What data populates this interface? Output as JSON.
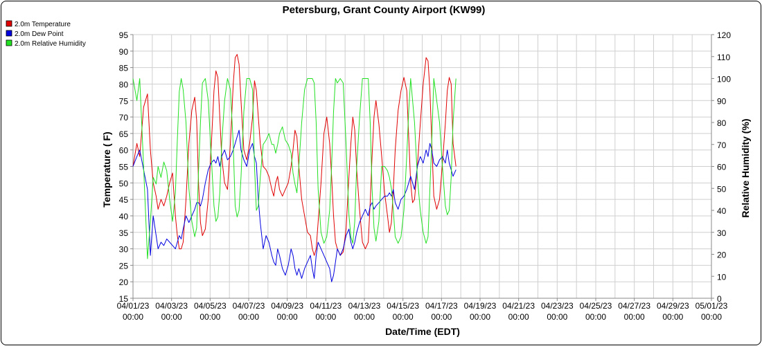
{
  "chart_data": {
    "type": "line",
    "title": "Petersburg, Grant County Airport (KW99)",
    "xlabel": "Date/Time (EDT)",
    "ylabel": "Temperature ( F)",
    "y2label": "Relative Humidity (%)",
    "x_start": "04/01/23 00:00",
    "x_end": "05/01/23 00:00",
    "ylim": [
      15,
      95
    ],
    "y2lim": [
      0,
      120
    ],
    "yticks": [
      15,
      20,
      25,
      30,
      35,
      40,
      45,
      50,
      55,
      60,
      65,
      70,
      75,
      80,
      85,
      90,
      95
    ],
    "y2ticks": [
      0,
      10,
      20,
      30,
      40,
      50,
      60,
      70,
      80,
      90,
      100,
      110,
      120
    ],
    "x_tick_labels": [
      [
        "04/01/23",
        "00:00"
      ],
      [
        "04/03/23",
        "00:00"
      ],
      [
        "04/05/23",
        "00:00"
      ],
      [
        "04/07/23",
        "00:00"
      ],
      [
        "04/09/23",
        "00:00"
      ],
      [
        "04/11/23",
        "00:00"
      ],
      [
        "04/13/23",
        "00:00"
      ],
      [
        "04/15/23",
        "00:00"
      ],
      [
        "04/17/23",
        "00:00"
      ],
      [
        "04/19/23",
        "00:00"
      ],
      [
        "04/21/23",
        "00:00"
      ],
      [
        "04/23/23",
        "00:00"
      ],
      [
        "04/25/23",
        "00:00"
      ],
      [
        "04/27/23",
        "00:00"
      ],
      [
        "04/29/23",
        "00:00"
      ],
      [
        "05/01/23",
        "00:00"
      ]
    ],
    "grid": true,
    "legend_position": "top-left",
    "series": [
      {
        "name": "2.0m Temperature",
        "color": "#e00000",
        "axis": "left",
        "x_days": [
          0,
          0.2,
          0.35,
          0.55,
          0.75,
          0.9,
          1.05,
          1.2,
          1.3,
          1.45,
          1.6,
          1.75,
          1.9,
          2.05,
          2.2,
          2.3,
          2.4,
          2.5,
          2.6,
          2.75,
          2.9,
          3.05,
          3.2,
          3.3,
          3.4,
          3.5,
          3.6,
          3.75,
          3.9,
          4.05,
          4.2,
          4.3,
          4.4,
          4.5,
          4.6,
          4.75,
          4.9,
          5.05,
          5.2,
          5.3,
          5.4,
          5.5,
          5.6,
          5.75,
          5.9,
          6.05,
          6.2,
          6.3,
          6.4,
          6.5,
          6.6,
          6.75,
          6.9,
          7.05,
          7.2,
          7.3,
          7.4,
          7.5,
          7.6,
          7.75,
          7.9,
          8.05,
          8.2,
          8.3,
          8.4,
          8.5,
          8.6,
          8.75,
          8.9,
          9.05,
          9.2,
          9.3,
          9.4,
          9.5,
          9.6,
          9.75,
          9.9,
          10.05,
          10.2,
          10.3,
          10.4,
          10.5,
          10.6,
          10.75,
          10.9,
          11.05,
          11.2,
          11.3,
          11.4,
          11.5,
          11.6,
          11.75,
          11.9,
          12.05,
          12.2,
          12.3,
          12.4,
          12.5,
          12.6,
          12.75,
          12.9,
          13.05,
          13.2,
          13.3,
          13.4,
          13.5,
          13.6,
          13.75,
          13.9,
          14.05,
          14.2,
          14.3,
          14.4,
          14.5,
          14.6,
          14.75,
          14.9,
          15.05,
          15.2,
          15.3,
          15.4,
          15.5,
          15.6,
          15.75,
          15.9,
          16.05,
          16.2,
          16.3,
          16.4,
          16.5,
          16.6,
          16.75
        ],
        "values": [
          55,
          62,
          58,
          73,
          77,
          60,
          50,
          46,
          42,
          45,
          43,
          46,
          50,
          53,
          40,
          34,
          30,
          30,
          32,
          45,
          62,
          72,
          76,
          69,
          50,
          38,
          34,
          36,
          45,
          60,
          78,
          84,
          82,
          70,
          58,
          50,
          48,
          62,
          80,
          88,
          89,
          86,
          75,
          60,
          57,
          62,
          70,
          81,
          78,
          70,
          62,
          55,
          54,
          52,
          48,
          46,
          50,
          52,
          48,
          46,
          48,
          50,
          55,
          60,
          66,
          64,
          55,
          45,
          40,
          35,
          34,
          30,
          28,
          30,
          38,
          50,
          65,
          70,
          62,
          52,
          40,
          32,
          30,
          28,
          29,
          36,
          52,
          62,
          70,
          66,
          54,
          42,
          32,
          30,
          32,
          44,
          58,
          70,
          75,
          68,
          58,
          47,
          40,
          35,
          38,
          48,
          60,
          72,
          78,
          82,
          78,
          64,
          50,
          44,
          45,
          55,
          68,
          80,
          88,
          87,
          78,
          62,
          46,
          42,
          45,
          56,
          68,
          78,
          82,
          80,
          62,
          55
        ]
      },
      {
        "name": "2.0m Dew Point",
        "color": "#0000e0",
        "axis": "left",
        "x_days": [
          0,
          0.2,
          0.35,
          0.55,
          0.75,
          0.9,
          1.05,
          1.2,
          1.3,
          1.45,
          1.6,
          1.75,
          1.9,
          2.05,
          2.2,
          2.3,
          2.4,
          2.5,
          2.6,
          2.75,
          2.9,
          3.05,
          3.2,
          3.3,
          3.4,
          3.5,
          3.6,
          3.75,
          3.9,
          4.05,
          4.2,
          4.3,
          4.4,
          4.5,
          4.6,
          4.75,
          4.9,
          5.05,
          5.2,
          5.3,
          5.4,
          5.5,
          5.6,
          5.75,
          5.9,
          6.05,
          6.2,
          6.3,
          6.4,
          6.5,
          6.6,
          6.75,
          6.9,
          7.05,
          7.2,
          7.3,
          7.4,
          7.5,
          7.6,
          7.75,
          7.9,
          8.05,
          8.2,
          8.3,
          8.4,
          8.5,
          8.6,
          8.75,
          8.9,
          9.05,
          9.2,
          9.3,
          9.4,
          9.5,
          9.6,
          9.75,
          9.9,
          10.05,
          10.2,
          10.3,
          10.4,
          10.5,
          10.6,
          10.75,
          10.9,
          11.05,
          11.2,
          11.3,
          11.4,
          11.5,
          11.6,
          11.75,
          11.9,
          12.05,
          12.2,
          12.3,
          12.4,
          12.5,
          12.6,
          12.75,
          12.9,
          13.05,
          13.2,
          13.3,
          13.4,
          13.5,
          13.6,
          13.75,
          13.9,
          14.05,
          14.2,
          14.3,
          14.4,
          14.5,
          14.6,
          14.75,
          14.9,
          15.05,
          15.2,
          15.3,
          15.4,
          15.5,
          15.6,
          15.75,
          15.9,
          16.05,
          16.2,
          16.3,
          16.4,
          16.5,
          16.6,
          16.75
        ],
        "values": [
          55,
          58,
          60,
          54,
          48,
          28,
          40,
          34,
          30,
          32,
          31,
          33,
          32,
          31,
          30,
          32,
          34,
          33,
          36,
          40,
          38,
          40,
          42,
          44,
          44,
          43,
          45,
          50,
          54,
          56,
          57,
          56,
          58,
          55,
          58,
          60,
          57,
          58,
          60,
          62,
          64,
          66,
          60,
          57,
          55,
          60,
          62,
          58,
          56,
          45,
          38,
          30,
          34,
          32,
          28,
          26,
          25,
          30,
          28,
          24,
          22,
          25,
          30,
          28,
          24,
          22,
          24,
          21,
          24,
          26,
          28,
          24,
          21,
          28,
          32,
          30,
          28,
          26,
          24,
          20,
          22,
          26,
          30,
          28,
          30,
          34,
          36,
          32,
          30,
          32,
          35,
          38,
          40,
          42,
          40,
          43,
          44,
          42,
          43,
          44,
          45,
          46,
          46,
          47,
          46,
          48,
          44,
          42,
          45,
          46,
          48,
          50,
          52,
          50,
          48,
          55,
          58,
          56,
          60,
          58,
          62,
          60,
          56,
          55,
          57,
          58,
          56,
          60,
          56,
          54,
          52,
          54
        ]
      },
      {
        "name": "2.0m Relative Humidity",
        "color": "#22e022",
        "axis": "right",
        "x_days": [
          0,
          0.2,
          0.35,
          0.55,
          0.75,
          0.9,
          1.05,
          1.2,
          1.3,
          1.45,
          1.6,
          1.75,
          1.9,
          2.05,
          2.2,
          2.3,
          2.4,
          2.5,
          2.6,
          2.75,
          2.9,
          3.05,
          3.2,
          3.3,
          3.4,
          3.5,
          3.6,
          3.75,
          3.9,
          4.05,
          4.2,
          4.3,
          4.4,
          4.5,
          4.6,
          4.75,
          4.9,
          5.05,
          5.2,
          5.3,
          5.4,
          5.5,
          5.6,
          5.75,
          5.9,
          6.05,
          6.2,
          6.3,
          6.4,
          6.5,
          6.6,
          6.75,
          6.9,
          7.05,
          7.2,
          7.3,
          7.4,
          7.5,
          7.6,
          7.75,
          7.9,
          8.05,
          8.2,
          8.3,
          8.4,
          8.5,
          8.6,
          8.75,
          8.9,
          9.05,
          9.2,
          9.3,
          9.4,
          9.5,
          9.6,
          9.75,
          9.9,
          10.05,
          10.2,
          10.3,
          10.4,
          10.5,
          10.6,
          10.75,
          10.9,
          11.05,
          11.2,
          11.3,
          11.4,
          11.5,
          11.6,
          11.75,
          11.9,
          12.05,
          12.2,
          12.3,
          12.4,
          12.5,
          12.6,
          12.75,
          12.9,
          13.05,
          13.2,
          13.3,
          13.4,
          13.5,
          13.6,
          13.75,
          13.9,
          14.05,
          14.2,
          14.3,
          14.4,
          14.5,
          14.6,
          14.75,
          14.9,
          15.05,
          15.2,
          15.3,
          15.4,
          15.5,
          15.6,
          15.75,
          15.9,
          16.05,
          16.2,
          16.3,
          16.4,
          16.5,
          16.6,
          16.75
        ],
        "values": [
          100,
          90,
          100,
          60,
          18,
          35,
          55,
          52,
          60,
          55,
          62,
          58,
          45,
          35,
          48,
          72,
          94,
          100,
          95,
          80,
          50,
          35,
          28,
          32,
          58,
          80,
          98,
          100,
          90,
          66,
          42,
          35,
          37,
          48,
          70,
          90,
          100,
          95,
          70,
          42,
          37,
          40,
          55,
          85,
          100,
          100,
          95,
          60,
          40,
          42,
          55,
          70,
          72,
          75,
          70,
          70,
          66,
          70,
          75,
          78,
          72,
          70,
          66,
          57,
          52,
          48,
          60,
          80,
          95,
          100,
          100,
          100,
          98,
          80,
          50,
          30,
          25,
          28,
          40,
          60,
          85,
          100,
          98,
          100,
          98,
          70,
          38,
          28,
          25,
          35,
          60,
          82,
          100,
          100,
          100,
          80,
          50,
          32,
          26,
          35,
          60,
          60,
          58,
          55,
          50,
          40,
          28,
          25,
          28,
          40,
          65,
          85,
          100,
          90,
          80,
          55,
          40,
          30,
          25,
          28,
          50,
          72,
          100,
          90,
          80,
          60,
          42,
          38,
          40,
          55,
          80,
          100
        ]
      }
    ]
  }
}
